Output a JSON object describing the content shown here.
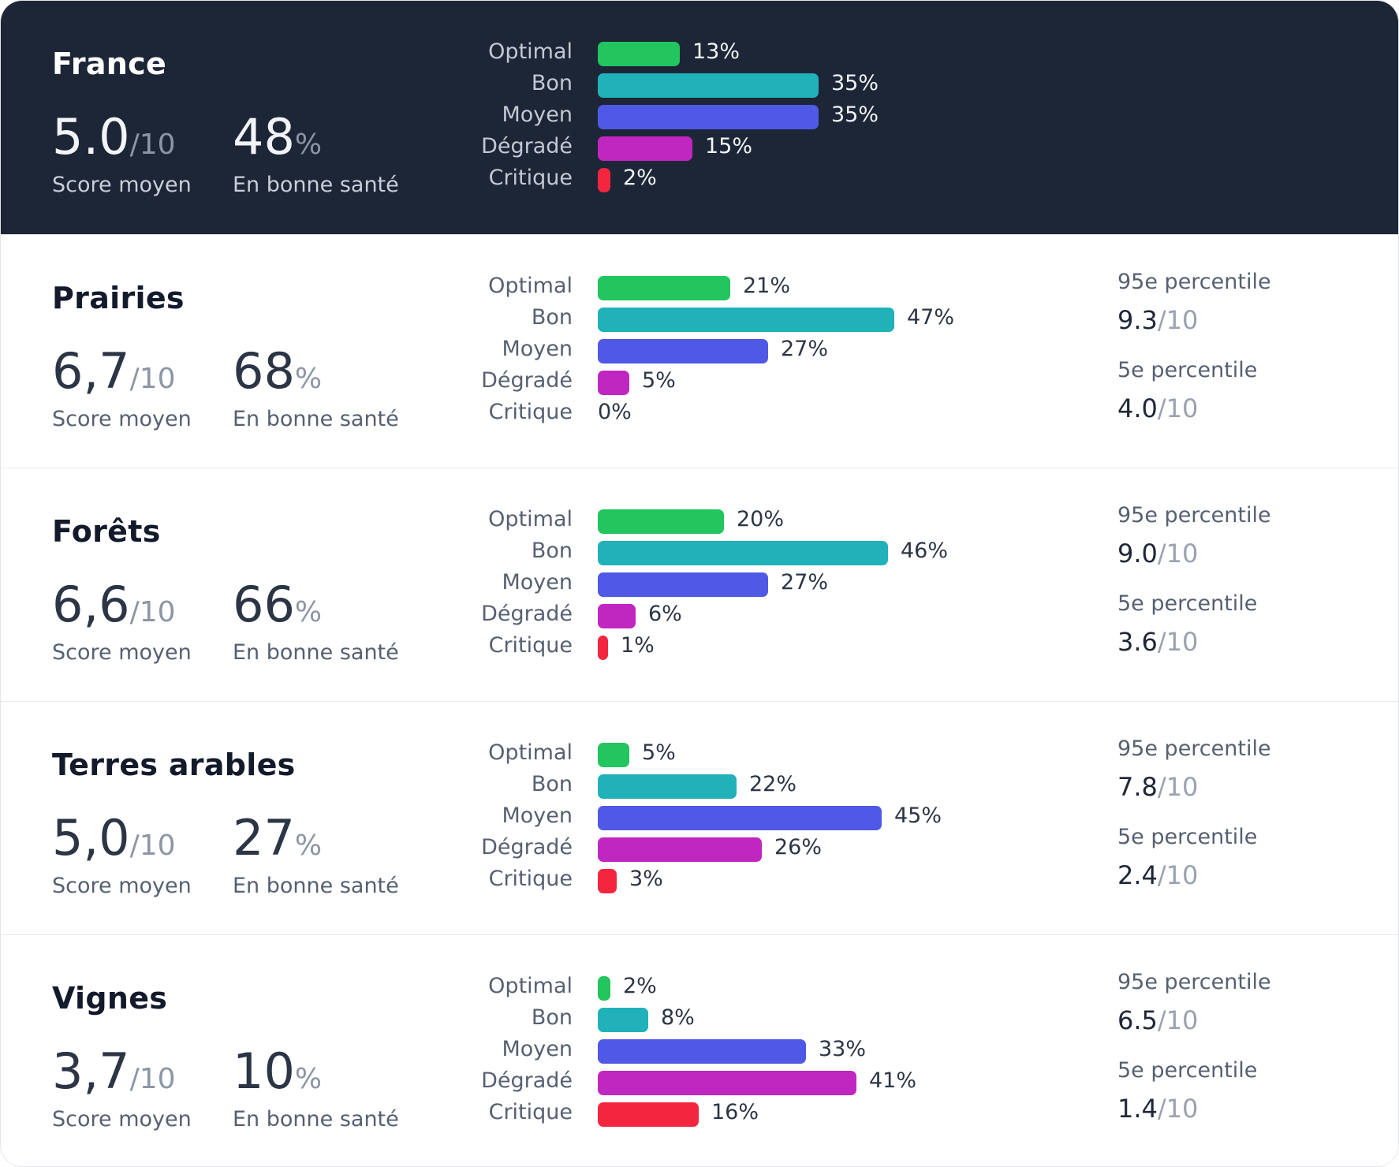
{
  "categories": [
    "Optimal",
    "Bon",
    "Moyen",
    "Dégradé",
    "Critique"
  ],
  "colors": {
    "Optimal": "#22c55e",
    "Bon": "#20b2b8",
    "Moyen": "#5058e6",
    "Dégradé": "#c026c0",
    "Critique": "#f4263f"
  },
  "sections": [
    {
      "title": "France",
      "score": "5.0",
      "score_unit": "/10",
      "score_caption": "Score moyen",
      "health": "48",
      "health_unit": "%",
      "health_caption": "En bonne santé",
      "values": [
        13,
        35,
        35,
        15,
        2
      ],
      "labels": [
        "13%",
        "35%",
        "35%",
        "15%",
        "2%"
      ]
    },
    {
      "title": "Prairies",
      "score": "6,7",
      "score_unit": "/10",
      "score_caption": "Score moyen",
      "health": "68",
      "health_unit": "%",
      "health_caption": "En bonne santé",
      "values": [
        21,
        47,
        27,
        5,
        0
      ],
      "labels": [
        "21%",
        "47%",
        "27%",
        "5%",
        "0%"
      ],
      "p95_label": "95e percentile",
      "p95": "9.3",
      "p95_unit": "/10",
      "p5_label": "5e percentile",
      "p5": "4.0",
      "p5_unit": "/10"
    },
    {
      "title": "Forêts",
      "score": "6,6",
      "score_unit": "/10",
      "score_caption": "Score moyen",
      "health": "66",
      "health_unit": "%",
      "health_caption": "En bonne santé",
      "values": [
        20,
        46,
        27,
        6,
        1
      ],
      "labels": [
        "20%",
        "46%",
        "27%",
        "6%",
        "1%"
      ],
      "p95_label": "95e percentile",
      "p95": "9.0",
      "p95_unit": "/10",
      "p5_label": "5e percentile",
      "p5": "3.6",
      "p5_unit": "/10"
    },
    {
      "title": "Terres arables",
      "score": "5,0",
      "score_unit": "/10",
      "score_caption": "Score moyen",
      "health": "27",
      "health_unit": "%",
      "health_caption": "En bonne santé",
      "values": [
        5,
        22,
        45,
        26,
        3
      ],
      "labels": [
        "5%",
        "22%",
        "45%",
        "26%",
        "3%"
      ],
      "p95_label": "95e percentile",
      "p95": "7.8",
      "p95_unit": "/10",
      "p5_label": "5e percentile",
      "p5": "2.4",
      "p5_unit": "/10"
    },
    {
      "title": "Vignes",
      "score": "3,7",
      "score_unit": "/10",
      "score_caption": "Score moyen",
      "health": "10",
      "health_unit": "%",
      "health_caption": "En bonne santé",
      "values": [
        2,
        8,
        33,
        41,
        16
      ],
      "labels": [
        "2%",
        "8%",
        "33%",
        "41%",
        "16%"
      ],
      "p95_label": "95e percentile",
      "p95": "6.5",
      "p95_unit": "/10",
      "p5_label": "5e percentile",
      "p5": "1.4",
      "p5_unit": "/10"
    }
  ],
  "chart_data": {
    "type": "bar",
    "orientation": "horizontal",
    "categories": [
      "Optimal",
      "Bon",
      "Moyen",
      "Dégradé",
      "Critique"
    ],
    "unit": "%",
    "series": [
      {
        "name": "France",
        "values": [
          13,
          35,
          35,
          15,
          2
        ]
      },
      {
        "name": "Prairies",
        "values": [
          21,
          47,
          27,
          5,
          0
        ]
      },
      {
        "name": "Forêts",
        "values": [
          20,
          46,
          27,
          6,
          1
        ]
      },
      {
        "name": "Terres arables",
        "values": [
          5,
          22,
          45,
          26,
          3
        ]
      },
      {
        "name": "Vignes",
        "values": [
          2,
          8,
          33,
          41,
          16
        ]
      }
    ]
  }
}
